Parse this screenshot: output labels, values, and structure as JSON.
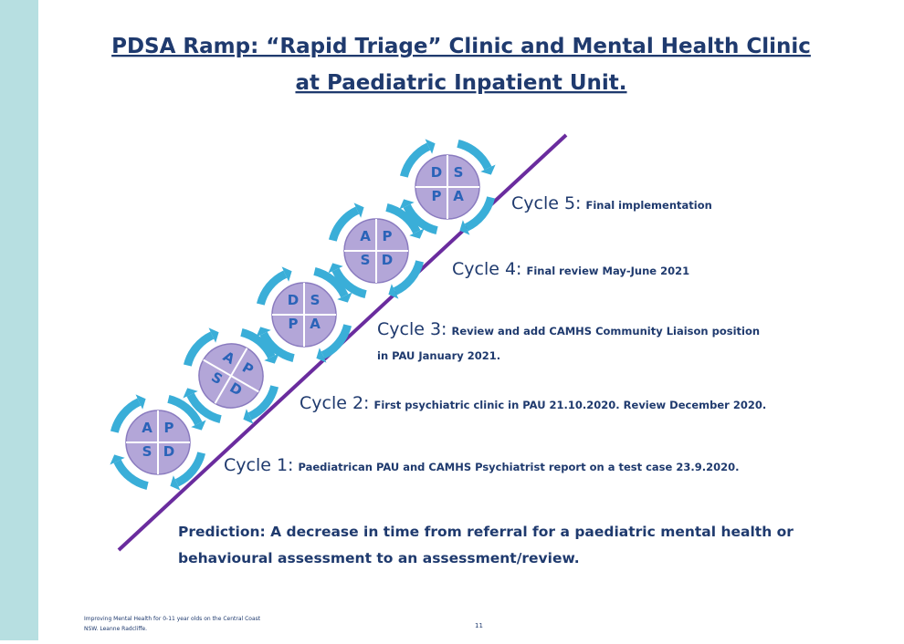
{
  "title": [
    "PDSA Ramp: “Rapid Triage” Clinic and Mental Health Clinic",
    "at Paediatric Inpatient Unit."
  ],
  "circles": [
    {
      "letters": [
        "A",
        "P",
        "S",
        "D"
      ]
    },
    {
      "letters": [
        "A",
        "P",
        "S",
        "D"
      ]
    },
    {
      "letters": [
        "D",
        "S",
        "P",
        "A"
      ]
    },
    {
      "letters": [
        "A",
        "P",
        "S",
        "D"
      ]
    },
    {
      "letters": [
        "D",
        "S",
        "P",
        "A"
      ]
    }
  ],
  "cycles": [
    {
      "label": "Cycle 1:",
      "text": [
        "Paediatrican  PAU and CAMHS Psychiatrist report on a  test case 23.9.2020."
      ]
    },
    {
      "label": "Cycle 2:",
      "text": [
        "First psychiatric  clinic in PAU 21.10.2020. Review December 2020."
      ]
    },
    {
      "label": "Cycle 3:",
      "text": [
        "Review and add CAMHS Community Liaison position",
        "in PAU January  2021."
      ]
    },
    {
      "label": "Cycle 4:",
      "text": [
        "Final  review May-June 2021"
      ]
    },
    {
      "label": "Cycle 5:",
      "text": [
        "Final  implementation"
      ]
    }
  ],
  "prediction": [
    "Prediction: A decrease in time from referral for a paediatric mental health or",
    "behavioural assessment to an assessment/review."
  ],
  "footer": [
    "Improving Mental Health for 0-11 year olds on the Central Coast",
    "NSW. Leanne Radcliffe."
  ],
  "page_number": "11"
}
